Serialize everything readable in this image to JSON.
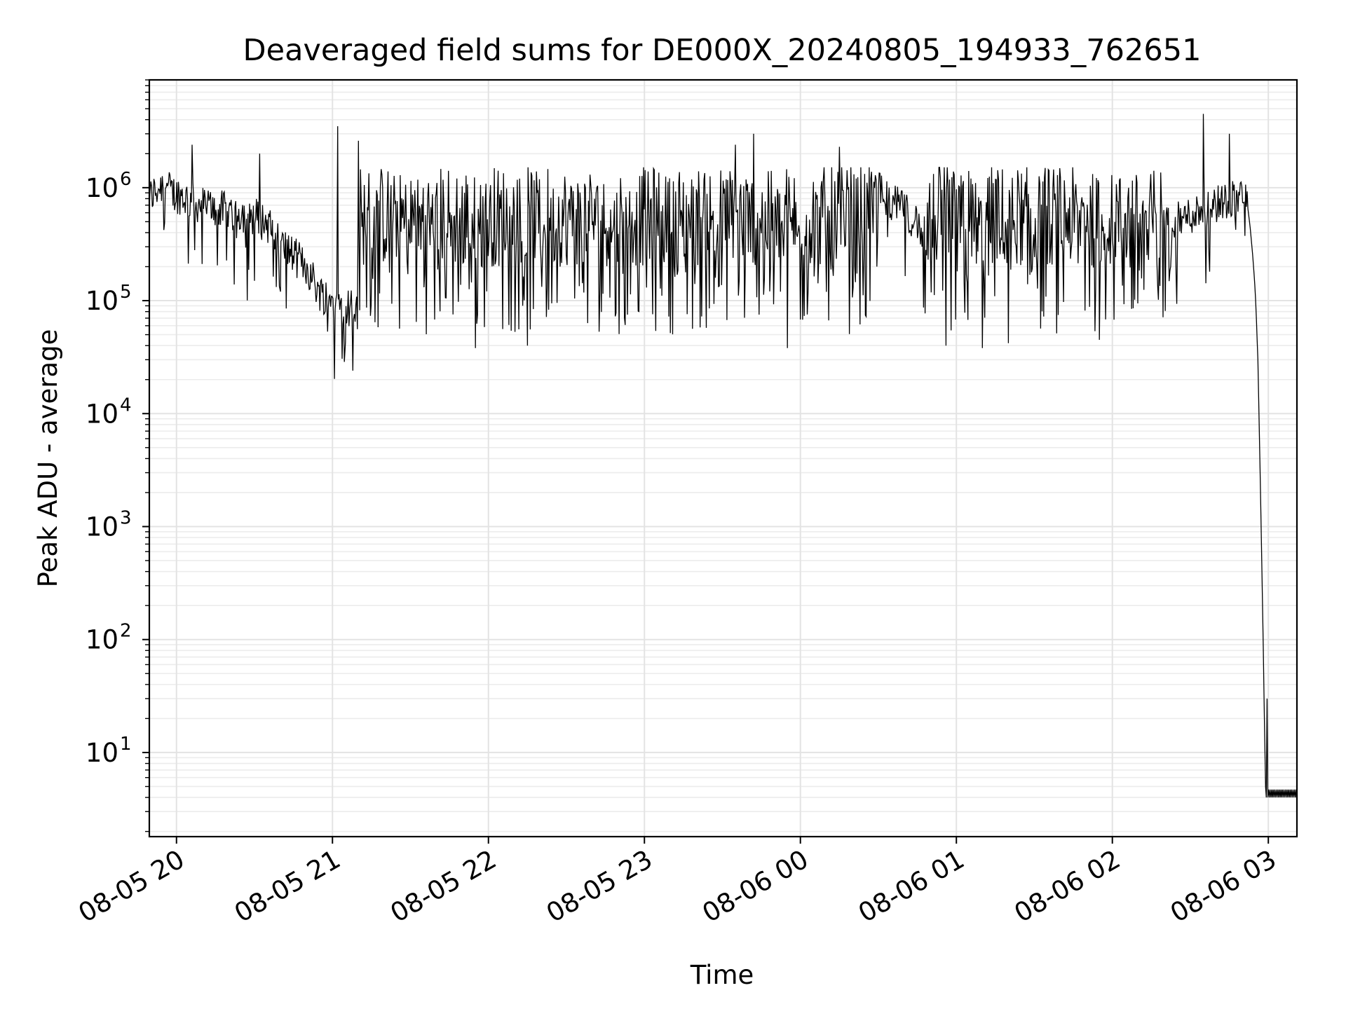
{
  "chart_data": {
    "type": "line",
    "title": "Deaveraged field sums for DE000X_20240805_194933_762651",
    "xlabel": "Time",
    "ylabel": "Peak ADU - average",
    "yscale": "log",
    "ylim": [
      1.8,
      9000000
    ],
    "xlim": [
      "2024-08-05 19:49:33",
      "2024-08-06 03:11:00"
    ],
    "grid": true,
    "line_color": "#000000",
    "x_ticks": [
      {
        "time": "2024-08-05 20:00",
        "label": "08-05 20"
      },
      {
        "time": "2024-08-05 21:00",
        "label": "08-05 21"
      },
      {
        "time": "2024-08-05 22:00",
        "label": "08-05 22"
      },
      {
        "time": "2024-08-05 23:00",
        "label": "08-05 23"
      },
      {
        "time": "2024-08-06 00:00",
        "label": "08-06 00"
      },
      {
        "time": "2024-08-06 01:00",
        "label": "08-06 01"
      },
      {
        "time": "2024-08-06 02:00",
        "label": "08-06 02"
      },
      {
        "time": "2024-08-06 03:00",
        "label": "08-06 03"
      }
    ],
    "y_ticks": [
      {
        "value": 10,
        "base": "10",
        "exp": "1"
      },
      {
        "value": 100,
        "base": "10",
        "exp": "2"
      },
      {
        "value": 1000,
        "base": "10",
        "exp": "3"
      },
      {
        "value": 10000,
        "base": "10",
        "exp": "4"
      },
      {
        "value": 100000,
        "base": "10",
        "exp": "5"
      },
      {
        "value": 1000000,
        "base": "10",
        "exp": "6"
      }
    ],
    "series": [
      {
        "points": [
          [
            "2024-08-05 19:49:33",
            800000
          ],
          [
            "2024-08-05 19:52",
            950000
          ],
          [
            "2024-08-05 19:55",
            1100000
          ],
          [
            "2024-08-05 19:58",
            900000
          ],
          [
            "2024-08-05 20:02",
            850000
          ],
          [
            "2024-08-05 20:06",
            750000
          ],
          [
            "2024-08-05 20:10",
            700000
          ],
          [
            "2024-08-05 20:15",
            650000
          ],
          [
            "2024-08-05 20:20",
            620000
          ],
          [
            "2024-08-05 20:25",
            600000
          ],
          [
            "2024-08-05 20:30",
            560000
          ],
          [
            "2024-08-05 20:35",
            480000
          ],
          [
            "2024-08-05 20:40",
            320000
          ],
          [
            "2024-08-05 20:45",
            250000
          ],
          [
            "2024-08-05 20:50",
            200000
          ],
          [
            "2024-08-05 20:55",
            120000
          ],
          [
            "2024-08-05 21:00",
            100000
          ],
          [
            "2024-08-05 21:05",
            90000
          ],
          [
            "2024-08-05 21:10",
            80000
          ],
          [
            "2024-08-05 21:15",
            75000
          ],
          [
            "2024-08-05 21:30",
            300000
          ],
          [
            "2024-08-05 21:50",
            400000
          ],
          [
            "2024-08-05 22:15",
            450000
          ],
          [
            "2024-08-05 22:40",
            420000
          ],
          [
            "2024-08-05 23:05",
            450000
          ],
          [
            "2024-08-05 23:30",
            420000
          ],
          [
            "2024-08-05 23:55",
            450000
          ],
          [
            "2024-08-06 00:10",
            800000
          ],
          [
            "2024-08-06 00:20",
            1000000
          ],
          [
            "2024-08-06 00:30",
            950000
          ],
          [
            "2024-08-06 00:45",
            500000
          ],
          [
            "2024-08-06 01:10",
            450000
          ],
          [
            "2024-08-06 01:35",
            420000
          ],
          [
            "2024-08-06 02:00",
            450000
          ],
          [
            "2024-08-06 02:15",
            420000
          ],
          [
            "2024-08-06 02:25",
            500000
          ],
          [
            "2024-08-06 02:35",
            650000
          ],
          [
            "2024-08-06 02:45",
            800000
          ],
          [
            "2024-08-06 02:50",
            850000
          ],
          [
            "2024-08-06 02:51",
            950000
          ],
          [
            "2024-08-06 02:52",
            700000
          ],
          [
            "2024-08-06 02:53",
            450000
          ],
          [
            "2024-08-06 02:54",
            250000
          ],
          [
            "2024-08-06 02:55",
            120000
          ],
          [
            "2024-08-06 02:56",
            30000
          ],
          [
            "2024-08-06 02:57",
            2000
          ],
          [
            "2024-08-06 02:58",
            100
          ],
          [
            "2024-08-06 02:59",
            4
          ],
          [
            "2024-08-06 03:00",
            4
          ],
          [
            "2024-08-06 03:11",
            4
          ]
        ],
        "spikes": [
          [
            "2024-08-05 20:06",
            2400000
          ],
          [
            "2024-08-05 20:32",
            2000000
          ],
          [
            "2024-08-05 21:02",
            3500000
          ],
          [
            "2024-08-05 21:10",
            2600000
          ],
          [
            "2024-08-05 23:35",
            2400000
          ],
          [
            "2024-08-05 23:42",
            3000000
          ],
          [
            "2024-08-06 00:15",
            2300000
          ],
          [
            "2024-08-06 02:35",
            4500000
          ],
          [
            "2024-08-06 02:45",
            3000000
          ],
          [
            "2024-08-06 02:59:30",
            30
          ]
        ],
        "dips": [
          [
            "2024-08-05 20:07",
            280000
          ],
          [
            "2024-08-05 20:30",
            150000
          ],
          [
            "2024-08-05 20:40",
            120000
          ],
          [
            "2024-08-05 21:05",
            43000
          ],
          [
            "2024-08-05 21:55",
            38000
          ],
          [
            "2024-08-05 22:15",
            40000
          ],
          [
            "2024-08-05 23:55",
            38000
          ],
          [
            "2024-08-06 00:56",
            40000
          ],
          [
            "2024-08-06 01:10",
            38000
          ],
          [
            "2024-08-06 01:20",
            42000
          ],
          [
            "2024-08-06 01:55",
            45000
          ]
        ]
      }
    ]
  }
}
